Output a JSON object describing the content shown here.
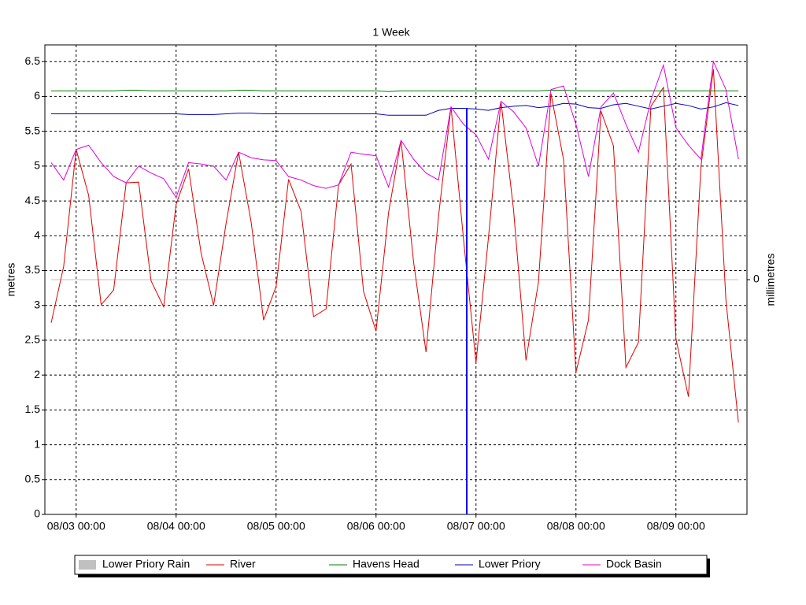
{
  "chart_data": {
    "type": "line",
    "title": "1 Week",
    "ylabel": "metres",
    "y2label": "millimetres",
    "categories": [
      null,
      null,
      "08/03 00:00",
      null,
      null,
      null,
      null,
      null,
      null,
      null,
      "08/04 00:00",
      null,
      null,
      null,
      null,
      null,
      null,
      null,
      "08/05 00:00",
      null,
      null,
      null,
      null,
      null,
      null,
      null,
      "08/06 00:00",
      null,
      null,
      null,
      null,
      null,
      null,
      null,
      "08/07 00:00",
      null,
      null,
      null,
      null,
      null,
      null,
      null,
      "08/08 00:00",
      null,
      null,
      null,
      null,
      null,
      null,
      null,
      "08/09 00:00",
      null,
      null,
      null,
      null,
      null
    ],
    "ylim": [
      0,
      6.74
    ],
    "yticks": [
      0,
      0.5,
      1,
      1.5,
      2,
      2.5,
      3,
      3.5,
      4,
      4.5,
      5,
      5.5,
      6,
      6.5
    ],
    "y2lim": [
      -1,
      1
    ],
    "y2ticks": [
      0
    ],
    "grid": true,
    "legend": "bottom",
    "series": [
      {
        "name": "Lower Priory Rain",
        "color": "#c0c0c0",
        "axis": "y2",
        "values": [
          0,
          0,
          0,
          0,
          0,
          0,
          0,
          0,
          0,
          0,
          0,
          0,
          0,
          0,
          0,
          0,
          0,
          0,
          0,
          0,
          0,
          0,
          0,
          0,
          0,
          0,
          0,
          0,
          0,
          0,
          0,
          0,
          0,
          0,
          0,
          0,
          0,
          0,
          0,
          0,
          0,
          0,
          0,
          0,
          0,
          0,
          0,
          0,
          0,
          0,
          0,
          0,
          0,
          0,
          0,
          0
        ]
      },
      {
        "name": "River",
        "color": "#e00000",
        "values": [
          2.75,
          3.56,
          5.24,
          4.58,
          3.01,
          3.22,
          4.76,
          4.77,
          3.35,
          2.98,
          4.45,
          4.96,
          3.75,
          3.0,
          4.18,
          5.2,
          4.2,
          2.79,
          3.27,
          4.81,
          4.35,
          2.84,
          2.95,
          4.73,
          5.03,
          3.2,
          2.63,
          4.33,
          5.37,
          3.63,
          2.33,
          4.28,
          5.85,
          3.95,
          2.18,
          3.98,
          5.93,
          4.38,
          2.21,
          3.34,
          6.04,
          5.1,
          2.04,
          2.79,
          5.79,
          5.29,
          2.11,
          2.47,
          5.86,
          6.13,
          2.52,
          1.69,
          4.99,
          6.39,
          3.08,
          1.32
        ]
      },
      {
        "name": "Havens Head",
        "color": "#008000",
        "values": [
          6.08,
          6.08,
          6.08,
          6.08,
          6.08,
          6.08,
          6.09,
          6.09,
          6.08,
          6.08,
          6.08,
          6.08,
          6.08,
          6.08,
          6.08,
          6.09,
          6.09,
          6.08,
          6.08,
          6.08,
          6.08,
          6.08,
          6.08,
          6.08,
          6.08,
          6.08,
          6.08,
          6.07,
          6.08,
          6.08,
          6.08,
          6.08,
          6.08,
          6.08,
          6.08,
          6.08,
          6.08,
          6.08,
          6.08,
          6.08,
          6.09,
          6.09,
          6.08,
          6.08,
          6.08,
          6.08,
          6.08,
          6.08,
          6.08,
          6.08,
          6.08,
          6.08,
          6.08,
          6.08,
          6.08,
          6.08
        ]
      },
      {
        "name": "Lower Priory",
        "color": "#0000c0",
        "values": [
          5.75,
          5.75,
          5.75,
          5.75,
          5.75,
          5.75,
          5.75,
          5.75,
          5.75,
          5.75,
          5.75,
          5.74,
          5.74,
          5.74,
          5.75,
          5.76,
          5.76,
          5.75,
          5.75,
          5.75,
          5.75,
          5.75,
          5.75,
          5.75,
          5.75,
          5.75,
          5.75,
          5.73,
          5.73,
          5.73,
          5.73,
          5.8,
          5.83,
          5.83,
          5.82,
          5.8,
          5.84,
          5.86,
          5.87,
          5.84,
          5.86,
          5.9,
          5.89,
          5.84,
          5.83,
          5.88,
          5.9,
          5.86,
          5.82,
          5.86,
          5.9,
          5.87,
          5.82,
          5.85,
          5.91,
          5.87
        ]
      },
      {
        "name": "Dock Basin",
        "color": "#e000e0",
        "values": [
          5.05,
          4.8,
          5.24,
          5.3,
          5.05,
          4.85,
          4.76,
          5.0,
          4.9,
          4.82,
          4.55,
          5.05,
          5.03,
          5.0,
          4.8,
          5.2,
          5.12,
          5.09,
          5.08,
          4.85,
          4.8,
          4.72,
          4.68,
          4.73,
          5.2,
          5.17,
          5.15,
          4.7,
          5.37,
          5.1,
          4.9,
          4.8,
          5.85,
          5.6,
          5.45,
          5.1,
          5.93,
          5.78,
          5.55,
          5.0,
          6.1,
          6.15,
          5.6,
          4.85,
          5.85,
          6.05,
          5.6,
          5.2,
          5.95,
          6.45,
          5.55,
          5.3,
          5.1,
          6.5,
          6.1,
          5.1
        ]
      }
    ]
  }
}
